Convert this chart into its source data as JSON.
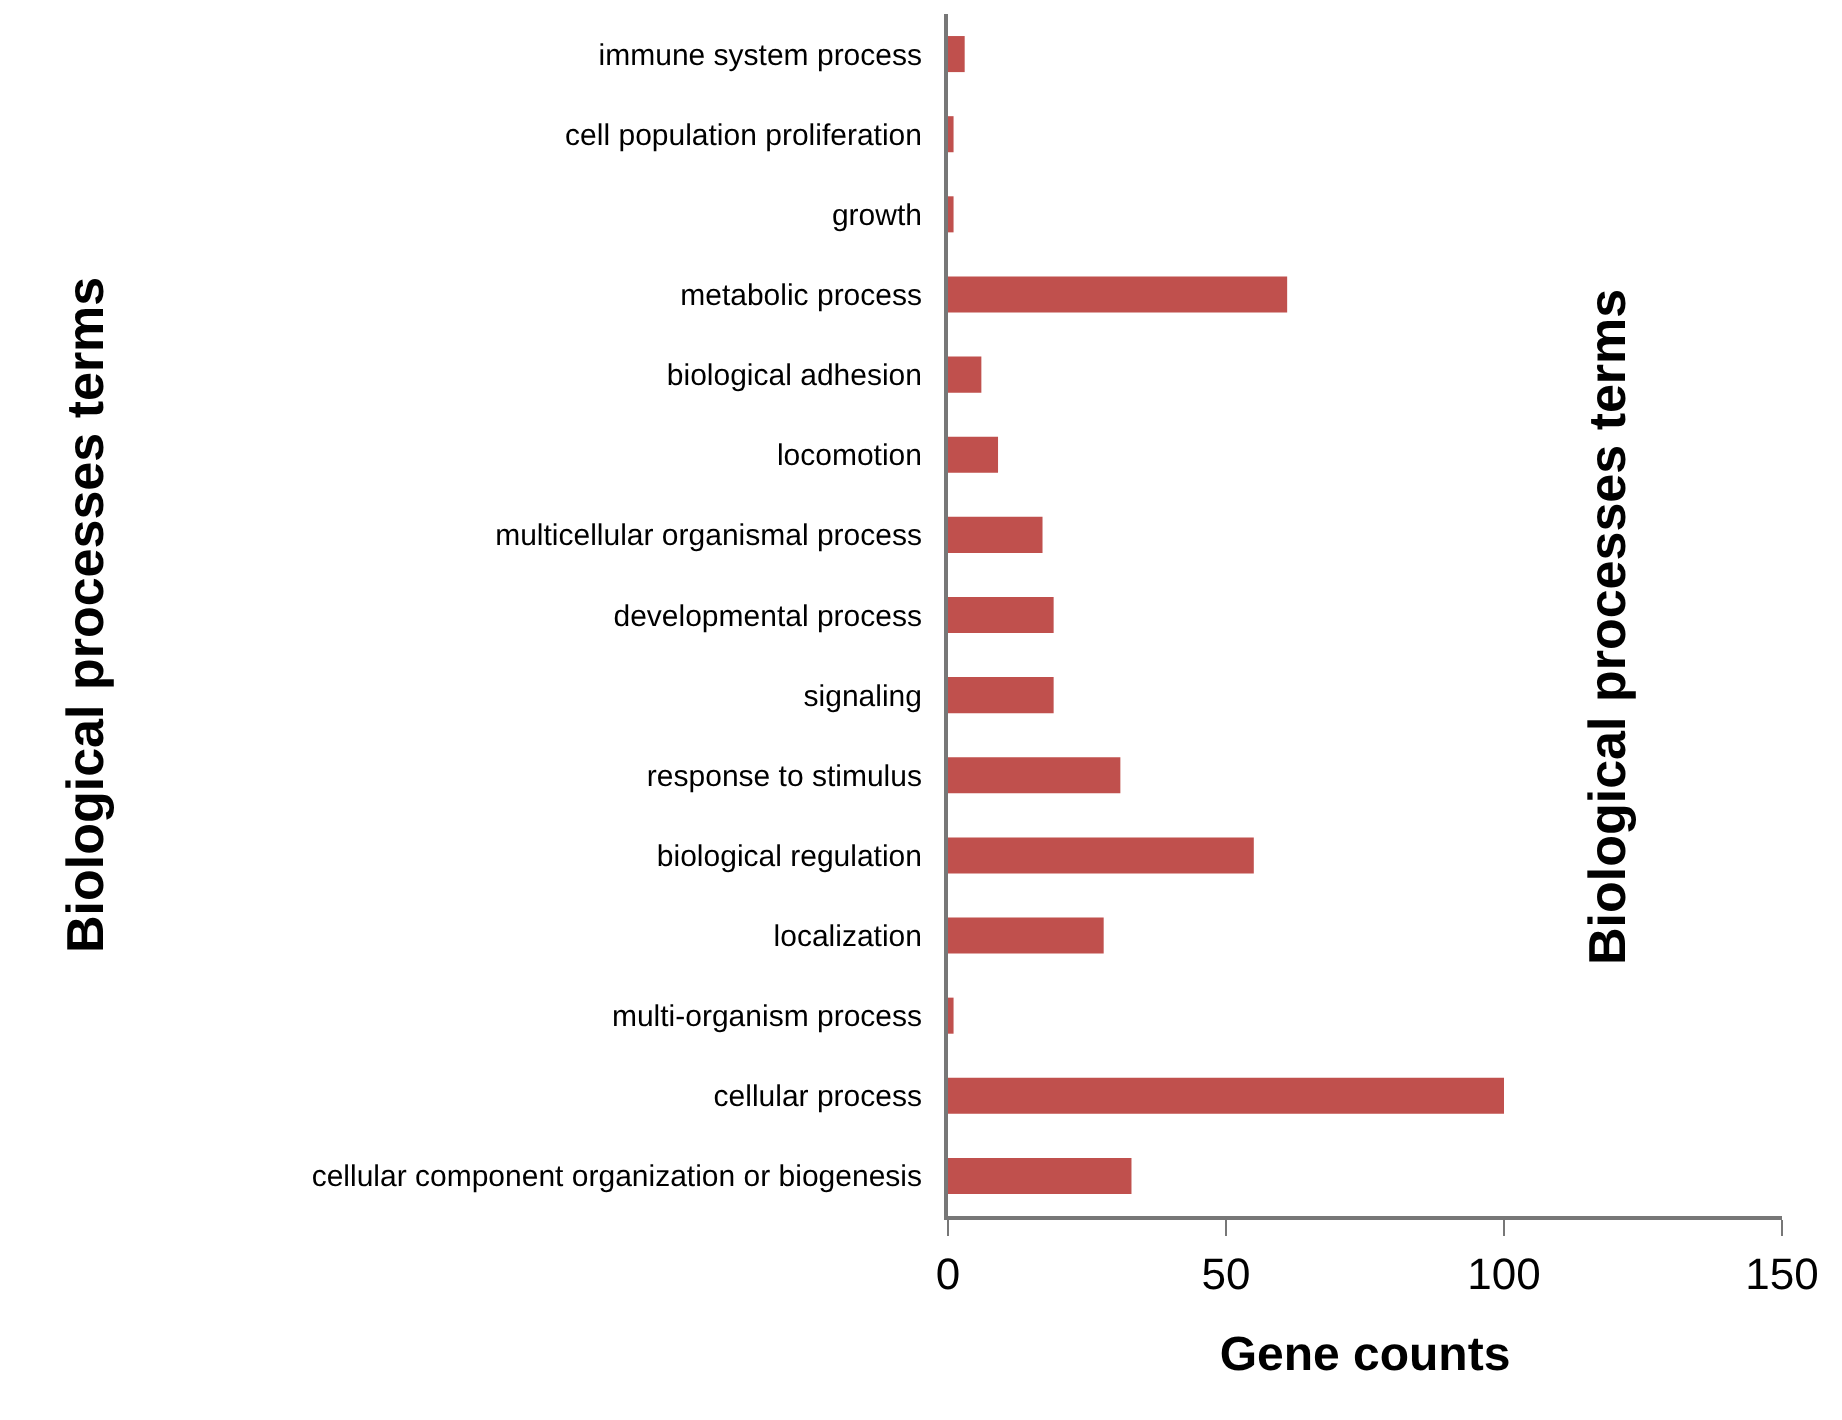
{
  "chart_data": {
    "type": "bar",
    "orientation": "horizontal",
    "xlabel": "Gene counts",
    "ylabel": "Biological processes terms",
    "y2label": "Biological processes terms",
    "categories": [
      "immune system process",
      "cell population proliferation",
      "growth",
      "metabolic process",
      "biological adhesion",
      "locomotion",
      "multicellular organismal process",
      "developmental process",
      "signaling",
      "response to stimulus",
      "biological regulation",
      "localization",
      "multi-organism process",
      "cellular process",
      "cellular component organization or biogenesis"
    ],
    "values": [
      3,
      1,
      1,
      61,
      6,
      9,
      17,
      19,
      19,
      31,
      55,
      28,
      1,
      100,
      33
    ],
    "color": "#c0504d",
    "xlim": [
      0,
      150
    ],
    "xticks": [
      0,
      50,
      100,
      150
    ]
  }
}
